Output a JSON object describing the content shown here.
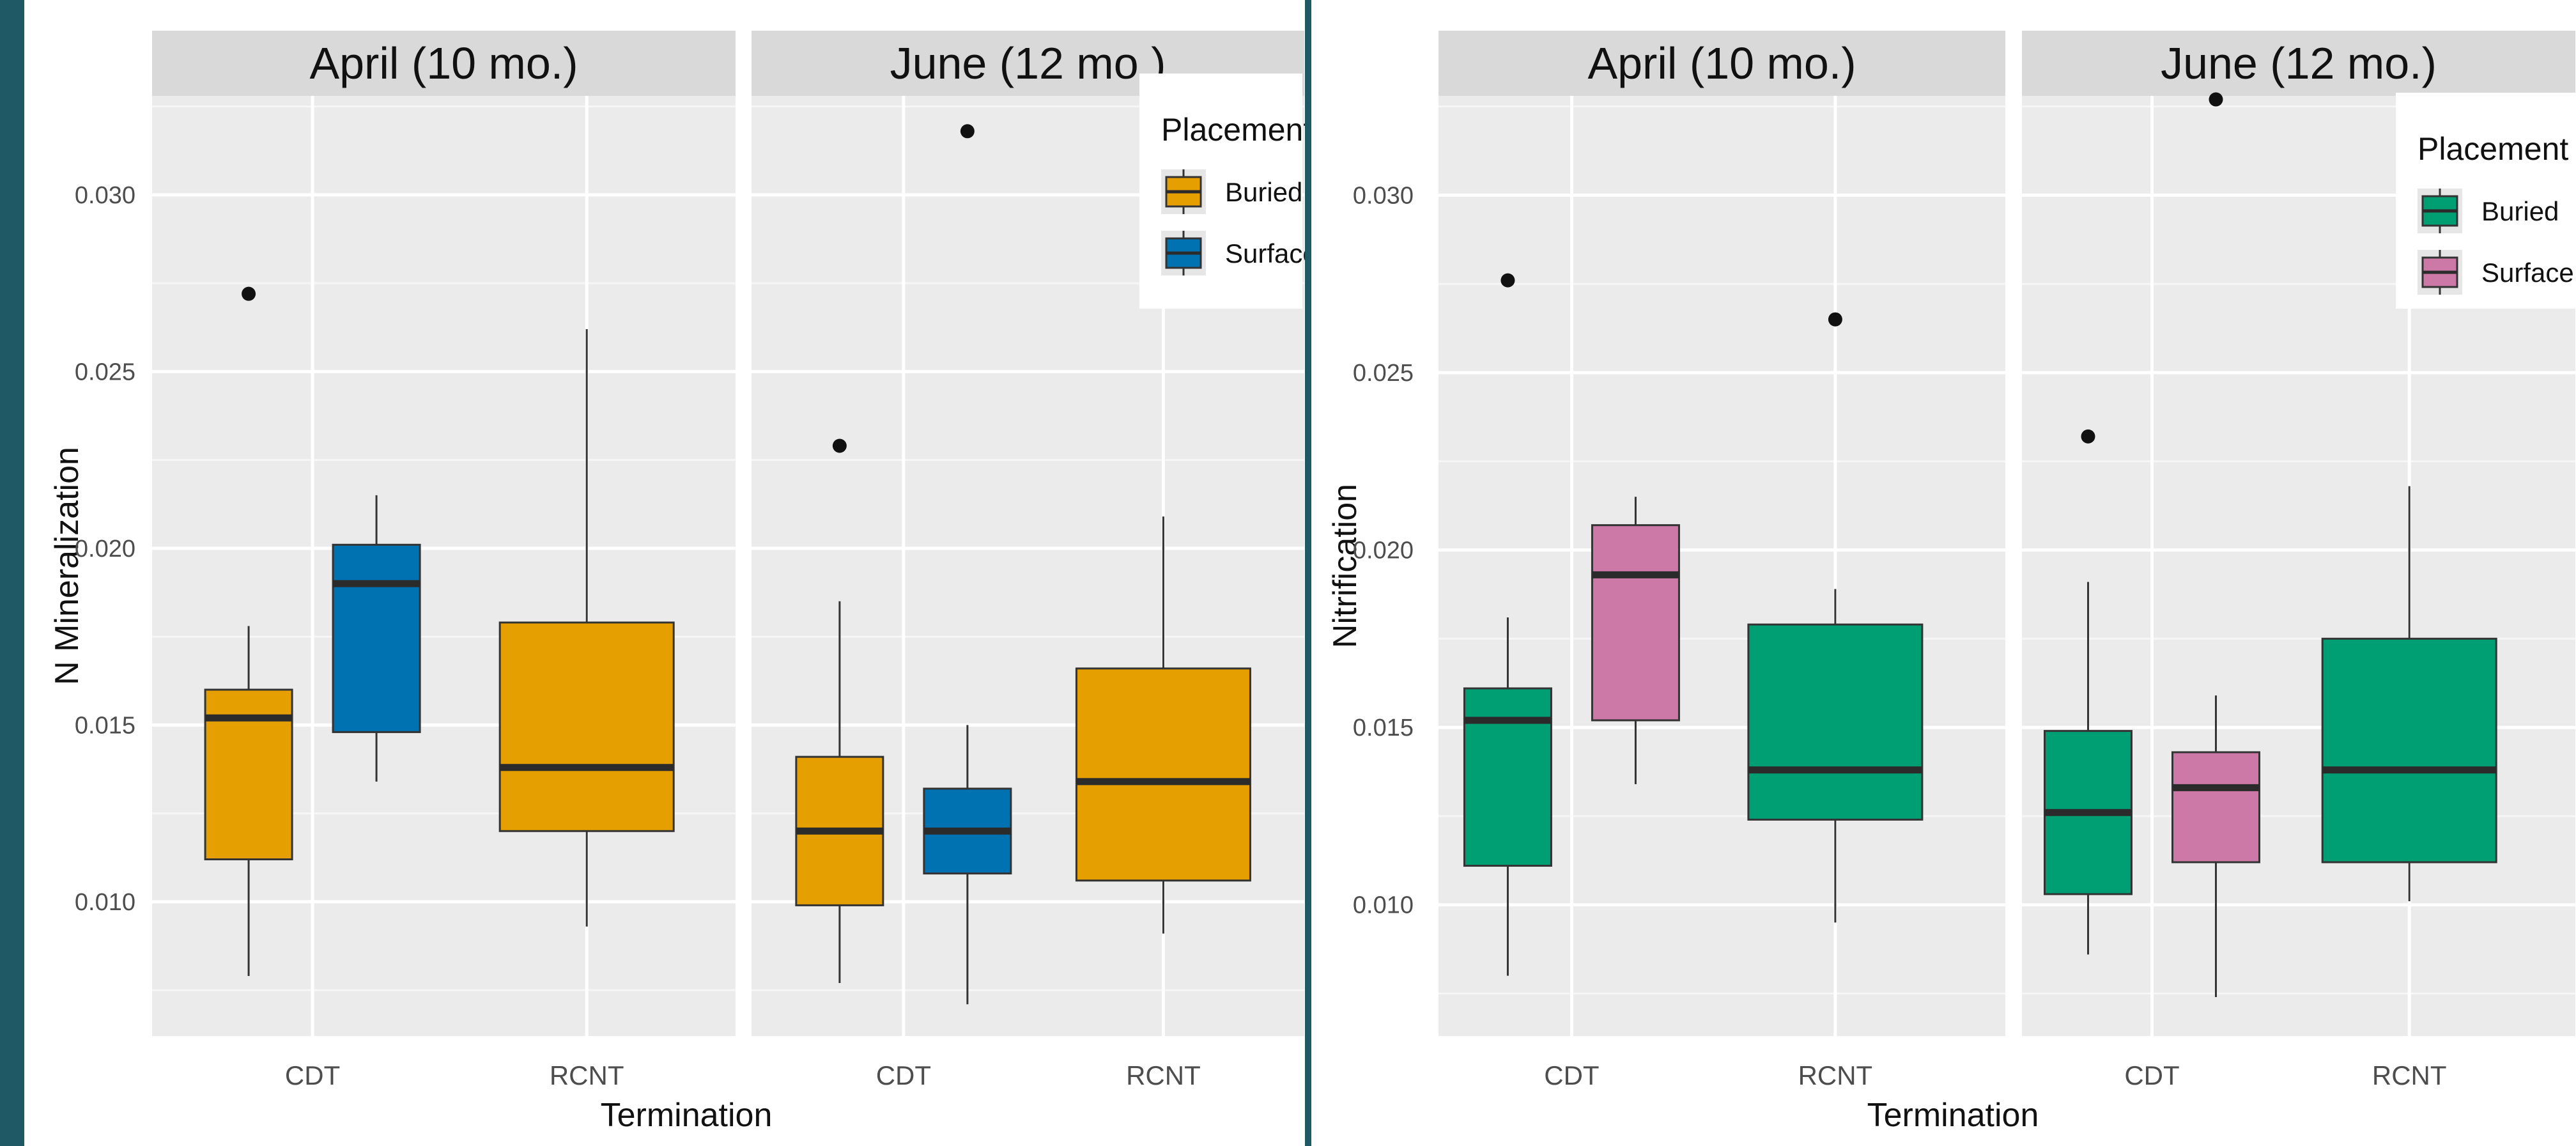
{
  "chart_data": [
    {
      "type": "boxplot",
      "ylabel": "N Mineralization",
      "xlabel": "Termination",
      "ylim": [
        0.0062,
        0.0328
      ],
      "yticks": [
        0.01,
        0.015,
        0.02,
        0.025,
        0.03
      ],
      "ytick_labels": [
        "0.010",
        "0.015",
        "0.020",
        "0.025",
        "0.030"
      ],
      "categories": [
        "CDT",
        "RCNT"
      ],
      "legend": {
        "title": "Placement",
        "position": "top-right",
        "entries": [
          {
            "label": "Buried",
            "color": "#E69F00"
          },
          {
            "label": "Surface",
            "color": "#0072B2"
          }
        ]
      },
      "grid": true,
      "facets": [
        {
          "title": "April (10 mo.)",
          "boxes": [
            {
              "category": "CDT",
              "placement": "Buried",
              "whisker_low": 0.0079,
              "q1": 0.0112,
              "median": 0.0152,
              "q3": 0.016,
              "whisker_high": 0.0178,
              "outliers": [
                0.0272
              ]
            },
            {
              "category": "CDT",
              "placement": "Surface",
              "whisker_low": 0.0134,
              "q1": 0.0148,
              "median": 0.019,
              "q3": 0.0201,
              "whisker_high": 0.0215,
              "outliers": []
            },
            {
              "category": "RCNT",
              "placement": "Buried",
              "whisker_low": 0.0093,
              "q1": 0.012,
              "median": 0.0138,
              "q3": 0.0179,
              "whisker_high": 0.0262,
              "outliers": []
            }
          ]
        },
        {
          "title": "June (12 mo.)",
          "boxes": [
            {
              "category": "CDT",
              "placement": "Buried",
              "whisker_low": 0.0077,
              "q1": 0.0099,
              "median": 0.012,
              "q3": 0.0141,
              "whisker_high": 0.0185,
              "outliers": [
                0.0229
              ]
            },
            {
              "category": "CDT",
              "placement": "Surface",
              "whisker_low": 0.0071,
              "q1": 0.0108,
              "median": 0.012,
              "q3": 0.0132,
              "whisker_high": 0.015,
              "outliers": [
                0.0318
              ]
            },
            {
              "category": "RCNT",
              "placement": "Buried",
              "whisker_low": 0.0091,
              "q1": 0.0106,
              "median": 0.0134,
              "q3": 0.0166,
              "whisker_high": 0.0209,
              "outliers": []
            }
          ]
        }
      ]
    },
    {
      "type": "boxplot",
      "ylabel": "Nitrification",
      "xlabel": "Termination",
      "ylim": [
        0.0063,
        0.0328
      ],
      "yticks": [
        0.01,
        0.015,
        0.02,
        0.025,
        0.03
      ],
      "ytick_labels": [
        "0.010",
        "0.015",
        "0.020",
        "0.025",
        "0.030"
      ],
      "categories": [
        "CDT",
        "RCNT"
      ],
      "legend": {
        "title": "Placement",
        "position": "top-right",
        "entries": [
          {
            "label": "Buried",
            "color": "#009E73"
          },
          {
            "label": "Surface",
            "color": "#CC79A7"
          }
        ]
      },
      "grid": true,
      "facets": [
        {
          "title": "April (10 mo.)",
          "boxes": [
            {
              "category": "CDT",
              "placement": "Buried",
              "whisker_low": 0.008,
              "q1": 0.0111,
              "median": 0.0152,
              "q3": 0.0161,
              "whisker_high": 0.0181,
              "outliers": [
                0.0276
              ]
            },
            {
              "category": "CDT",
              "placement": "Surface",
              "whisker_low": 0.0134,
              "q1": 0.0152,
              "median": 0.0193,
              "q3": 0.0207,
              "whisker_high": 0.0215,
              "outliers": []
            },
            {
              "category": "RCNT",
              "placement": "Buried",
              "whisker_low": 0.0095,
              "q1": 0.0124,
              "median": 0.0138,
              "q3": 0.0179,
              "whisker_high": 0.0189,
              "outliers": [
                0.0265
              ]
            }
          ]
        },
        {
          "title": "June (12 mo.)",
          "boxes": [
            {
              "category": "CDT",
              "placement": "Buried",
              "whisker_low": 0.0086,
              "q1": 0.0103,
              "median": 0.0126,
              "q3": 0.0149,
              "whisker_high": 0.0191,
              "outliers": [
                0.0232
              ]
            },
            {
              "category": "CDT",
              "placement": "Surface",
              "whisker_low": 0.0074,
              "q1": 0.0112,
              "median": 0.0133,
              "q3": 0.0143,
              "whisker_high": 0.0159,
              "outliers": [
                0.0327
              ]
            },
            {
              "category": "RCNT",
              "placement": "Buried",
              "whisker_low": 0.0101,
              "q1": 0.0112,
              "median": 0.0138,
              "q3": 0.0175,
              "whisker_high": 0.0218,
              "outliers": []
            }
          ]
        }
      ]
    }
  ]
}
